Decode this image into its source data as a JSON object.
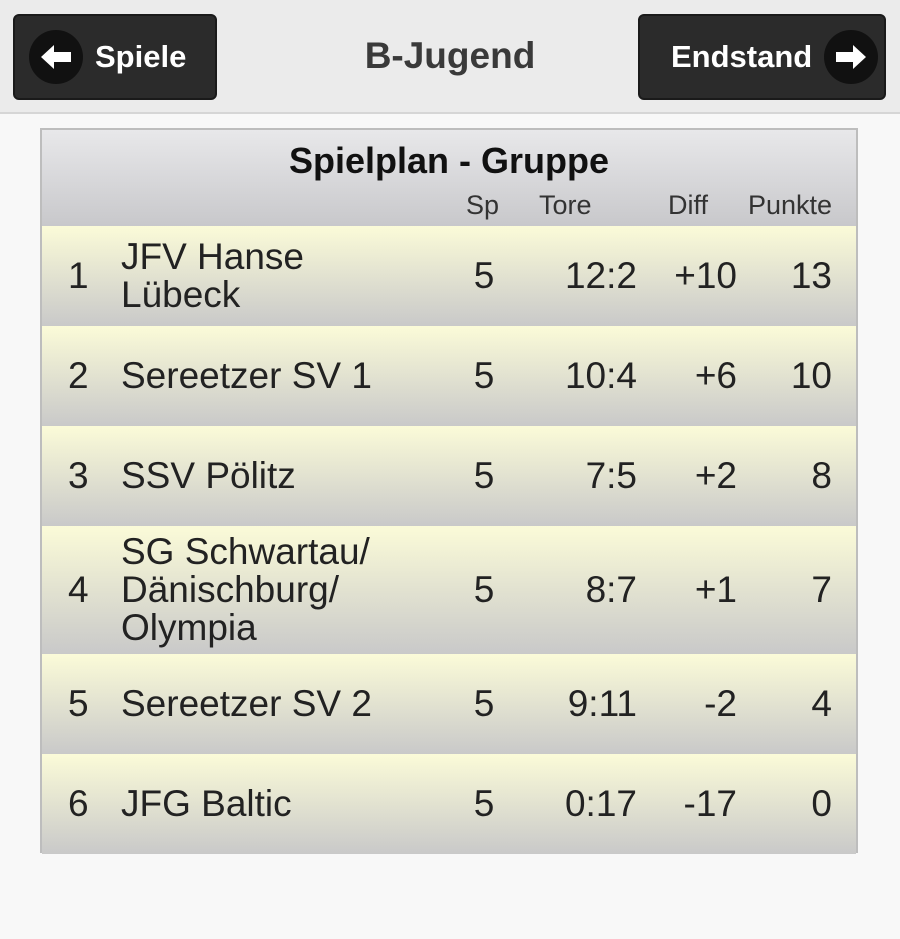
{
  "header": {
    "title": "B-Jugend",
    "back_label": "Spiele",
    "next_label": "Endstand"
  },
  "table": {
    "title": "Spielplan - Gruppe",
    "columns": {
      "played": "Sp",
      "goals": "Tore",
      "diff": "Diff",
      "points": "Punkte"
    },
    "rows": [
      {
        "pos": "1",
        "team": "JFV Hanse Lübeck",
        "played": "5",
        "goals": "12:2",
        "diff": "+10",
        "points": "13"
      },
      {
        "pos": "2",
        "team": "Sereetzer SV 1",
        "played": "5",
        "goals": "10:4",
        "diff": "+6",
        "points": "10"
      },
      {
        "pos": "3",
        "team": "SSV Pölitz",
        "played": "5",
        "goals": "7:5",
        "diff": "+2",
        "points": "8"
      },
      {
        "pos": "4",
        "team": "SG Schwartau/ Dänischburg/ Olympia",
        "played": "5",
        "goals": "8:7",
        "diff": "+1",
        "points": "7"
      },
      {
        "pos": "5",
        "team": "Sereetzer SV 2",
        "played": "5",
        "goals": "9:11",
        "diff": "-2",
        "points": "4"
      },
      {
        "pos": "6",
        "team": "JFG Baltic",
        "played": "5",
        "goals": "0:17",
        "diff": "-17",
        "points": "0"
      }
    ]
  },
  "icons": {
    "back": "arrow-left-icon",
    "next": "arrow-right-icon"
  }
}
